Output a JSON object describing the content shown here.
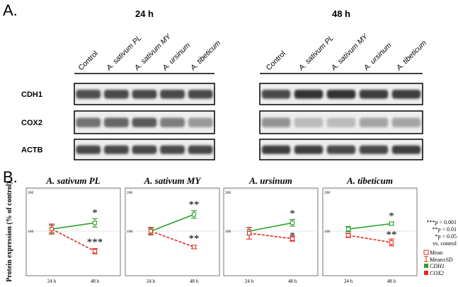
{
  "panel_a": {
    "label": "A.",
    "groups": [
      {
        "title": "24 h",
        "lanes": [
          "Control",
          "A. sativum PL",
          "A. sativum MY",
          "A. ursinum",
          "A. tibeticum"
        ]
      },
      {
        "title": "48 h",
        "lanes": [
          "Control",
          "A. sativum PL",
          "A. sativum MY",
          "A. ursinum",
          "A. tibeticum"
        ]
      }
    ],
    "rows": [
      "CDH1",
      "COX2",
      "ACTB"
    ]
  },
  "panel_b": {
    "label": "B.",
    "y_label": "Protein expression (% of control)",
    "significance": [
      "***p < 0.001",
      "**p < 0.01",
      "*p < 0.05",
      "vs. control"
    ],
    "legend_items": [
      "Mean",
      "Mean±SD"
    ],
    "chart_data": [
      {
        "type": "line",
        "title": "A. sativum PL",
        "categories": [
          "24 h",
          "48 h"
        ],
        "ylim": [
          0,
          200
        ],
        "yticks": [
          100,
          200
        ],
        "grid": true,
        "series": [
          {
            "name": "CDH1",
            "color": "#2ca02c",
            "line_style": "solid",
            "values": [
              105,
              120
            ],
            "errors": [
              9,
              10
            ]
          },
          {
            "name": "COX2",
            "color": "#e8261d",
            "line_style": "dashed",
            "values": [
              105,
              52
            ],
            "errors": [
              12,
              6
            ]
          }
        ],
        "annotations": [
          "*",
          "***"
        ]
      },
      {
        "type": "line",
        "title": "A. sativum MY",
        "categories": [
          "24 h",
          "48 h"
        ],
        "ylim": [
          0,
          200
        ],
        "yticks": [
          100,
          200
        ],
        "grid": true,
        "series": [
          {
            "name": "CDH1",
            "color": "#2ca02c",
            "line_style": "solid",
            "values": [
              100,
              140
            ],
            "errors": [
              7,
              9
            ]
          },
          {
            "name": "COX2",
            "color": "#e8261d",
            "line_style": "dashed",
            "values": [
              100,
              62
            ],
            "errors": [
              9,
              4
            ]
          }
        ],
        "annotations": [
          "**",
          "**"
        ]
      },
      {
        "type": "line",
        "title": "A. ursinum",
        "categories": [
          "24 h",
          "48 h"
        ],
        "ylim": [
          0,
          200
        ],
        "yticks": [
          100,
          200
        ],
        "grid": true,
        "series": [
          {
            "name": "CDH1",
            "color": "#2ca02c",
            "line_style": "solid",
            "values": [
              100,
              120
            ],
            "errors": [
              9,
              8
            ]
          },
          {
            "name": "COX2",
            "color": "#e8261d",
            "line_style": "dashed",
            "values": [
              95,
              82
            ],
            "errors": [
              14,
              6
            ]
          }
        ],
        "annotations": [
          "*",
          "*"
        ]
      },
      {
        "type": "line",
        "title": "A. tibeticum",
        "categories": [
          "24 h",
          "48 h"
        ],
        "ylim": [
          0,
          200
        ],
        "yticks": [
          100,
          200
        ],
        "grid": true,
        "series": [
          {
            "name": "CDH1",
            "color": "#2ca02c",
            "line_style": "solid",
            "values": [
              105,
              118
            ],
            "errors": [
              6,
              4
            ]
          },
          {
            "name": "COX2",
            "color": "#e8261d",
            "line_style": "dashed",
            "values": [
              90,
              73
            ],
            "errors": [
              5,
              8
            ]
          }
        ],
        "annotations": [
          "*",
          "**"
        ]
      }
    ]
  }
}
